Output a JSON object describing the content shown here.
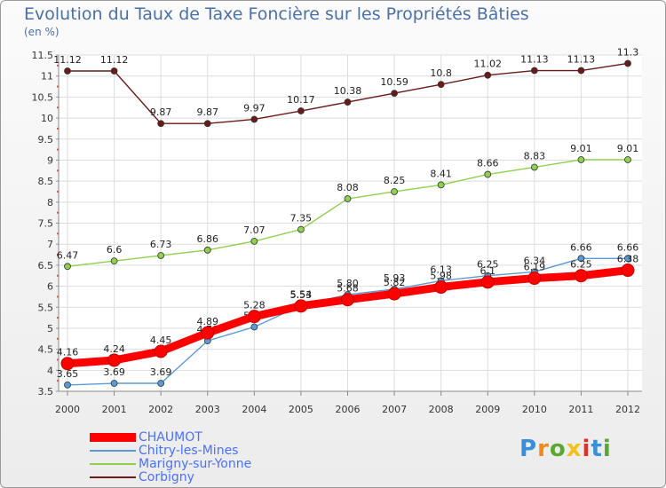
{
  "title": "Evolution du Taux de Taxe Foncière sur les Propriétés Bâties",
  "unit": "(en %)",
  "chart_data": {
    "type": "line",
    "title": "Evolution du Taux de Taxe Foncière sur les Propriétés Bâties",
    "ylabel": "(en %)",
    "xlabel": "",
    "ylim": [
      3.5,
      11.5
    ],
    "yticks": [
      "3.5",
      "4",
      "4.5",
      "5",
      "5.5",
      "6",
      "6.5",
      "7",
      "7.5",
      "8",
      "8.5",
      "9",
      "9.5",
      "10",
      "10.5",
      "11",
      "11.5"
    ],
    "x": [
      "2000",
      "2001",
      "2002",
      "2003",
      "2004",
      "2005",
      "2006",
      "2007",
      "2008",
      "2009",
      "2010",
      "2011",
      "2012"
    ],
    "series": [
      {
        "name": "Corbigny",
        "color": "#6b1a1a",
        "values": [
          11.12,
          11.12,
          9.87,
          9.87,
          9.97,
          10.17,
          10.38,
          10.59,
          10.8,
          11.02,
          11.13,
          11.13,
          11.3
        ],
        "labels": [
          "11.12",
          "11.12",
          "9.87",
          "9.87",
          "9.97",
          "10.17",
          "10.38",
          "10.59",
          "10.8",
          "11.02",
          "11.13",
          "11.13",
          "11.3"
        ]
      },
      {
        "name": "Marigny-sur-Yonne",
        "color": "#8fd14f",
        "values": [
          6.47,
          6.6,
          6.73,
          6.86,
          7.07,
          7.35,
          8.08,
          8.25,
          8.41,
          8.66,
          8.83,
          9.01,
          9.01
        ],
        "labels": [
          "6.47",
          "6.6",
          "6.73",
          "6.86",
          "7.07",
          "7.35",
          "8.08",
          "8.25",
          "8.41",
          "8.66",
          "8.83",
          "9.01",
          "9.01"
        ]
      },
      {
        "name": "Chitry-les-Mines",
        "color": "#5b9bd5",
        "values": [
          3.65,
          3.69,
          3.69,
          4.7,
          5.03,
          5.54,
          5.8,
          5.93,
          6.13,
          6.25,
          6.34,
          6.66,
          6.66
        ],
        "labels": [
          "3.65",
          "3.69",
          "3.69",
          "4.70",
          "5.03",
          "5.54",
          "5.80",
          "5.93",
          "6.13",
          "6.25",
          "6.34",
          "6.66",
          "6.66"
        ]
      },
      {
        "name": "CHAUMOT",
        "color": "#ff0000",
        "values": [
          4.16,
          4.24,
          4.45,
          4.89,
          5.28,
          5.53,
          5.68,
          5.82,
          5.98,
          6.1,
          6.19,
          6.25,
          6.38
        ],
        "labels": [
          "4.16",
          "4.24",
          "4.45",
          "4.89",
          "5.28",
          "5.53",
          "5.68",
          "5.82",
          "5.98",
          "6.1",
          "6.19",
          "6.25",
          "6.38"
        ]
      }
    ]
  },
  "legend": [
    {
      "name": "CHAUMOT",
      "color": "#ff0000",
      "thickness": "thick"
    },
    {
      "name": "Chitry-les-Mines",
      "color": "#5b9bd5",
      "thickness": "thin"
    },
    {
      "name": "Marigny-sur-Yonne",
      "color": "#8fd14f",
      "thickness": "thin"
    },
    {
      "name": "Corbigny",
      "color": "#6b1a1a",
      "thickness": "thin"
    }
  ],
  "logo": {
    "text": "Proxiti",
    "colors": [
      "#3b8fd9",
      "#f08a1c",
      "#5aa832",
      "#f2c21a",
      "#d9332a",
      "#3b8fd9",
      "#5aa832"
    ]
  }
}
